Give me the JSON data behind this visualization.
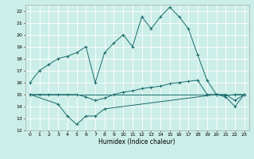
{
  "xlabel": "Humidex (Indice chaleur)",
  "xlim": [
    -0.5,
    23.5
  ],
  "ylim": [
    12,
    22.5
  ],
  "yticks": [
    12,
    13,
    14,
    15,
    16,
    17,
    18,
    19,
    20,
    21,
    22
  ],
  "xticks": [
    0,
    1,
    2,
    3,
    4,
    5,
    6,
    7,
    8,
    9,
    10,
    11,
    12,
    13,
    14,
    15,
    16,
    17,
    18,
    19,
    20,
    21,
    22,
    23
  ],
  "bg_color": "#cceee8",
  "line_color": "#1a6b6b",
  "grid_color": "#ffffff",
  "line1_x": [
    0,
    1,
    2,
    3,
    4,
    5,
    6,
    7,
    8,
    9,
    10,
    11,
    12,
    13,
    14,
    15,
    16,
    17,
    18,
    19,
    20,
    21,
    22,
    23
  ],
  "line1_y": [
    16,
    17,
    17.5,
    18,
    18.2,
    18.5,
    19,
    16,
    18.5,
    19.3,
    20,
    19,
    21.5,
    20.5,
    21.5,
    22.3,
    21.5,
    20.5,
    18.3,
    16.2,
    15,
    15,
    14.5,
    15
  ],
  "line2_x": [
    0,
    3,
    4,
    5,
    6,
    7,
    8,
    20,
    21,
    22,
    23
  ],
  "line2_y": [
    15,
    14.2,
    13.2,
    12.5,
    13.2,
    13.2,
    13.8,
    15,
    14.8,
    14.0,
    15
  ],
  "line3_x": [
    0,
    1,
    2,
    3,
    4,
    5,
    6,
    7,
    8,
    9,
    10,
    11,
    12,
    13,
    14,
    15,
    16,
    17,
    18,
    19,
    20,
    21,
    22,
    23
  ],
  "line3_y": [
    15,
    15,
    15,
    15,
    15,
    15,
    14.8,
    14.5,
    14.7,
    15.0,
    15.2,
    15.3,
    15.5,
    15.6,
    15.7,
    15.9,
    16.0,
    16.1,
    16.2,
    15.0,
    15.0,
    14.9,
    15.0,
    15.0
  ],
  "line4_x": [
    0,
    1,
    2,
    3,
    4,
    5,
    6,
    7,
    8,
    9,
    10,
    11,
    12,
    13,
    14,
    15,
    16,
    17,
    18,
    19,
    20,
    21,
    22,
    23
  ],
  "line4_y": [
    15,
    15,
    15,
    15,
    15,
    15,
    15,
    15,
    15,
    15,
    15,
    15,
    15,
    15,
    15,
    15,
    15,
    15,
    15,
    15,
    15,
    15,
    15,
    15
  ]
}
